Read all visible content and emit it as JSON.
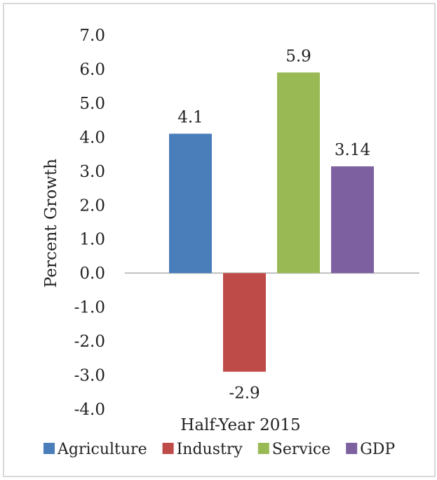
{
  "chart_data": {
    "type": "bar",
    "xlabel": "Half-Year 2015",
    "ylabel": "Percent Growth",
    "ylim": [
      -4.0,
      7.0
    ],
    "yticks": [
      "7.0",
      "6.0",
      "5.0",
      "4.0",
      "3.0",
      "2.0",
      "1.0",
      "0.0",
      "-1.0",
      "-2.0",
      "-3.0",
      "-4.0"
    ],
    "grid": false,
    "legend_position": "bottom",
    "series": [
      {
        "name": "Agriculture",
        "value": 4.1,
        "label": "4.1",
        "color": "#4a7ebb"
      },
      {
        "name": "Industry",
        "value": -2.9,
        "label": "-2.9",
        "color": "#be4b48"
      },
      {
        "name": "Service",
        "value": 5.9,
        "label": "5.9",
        "color": "#98b954"
      },
      {
        "name": "GDP",
        "value": 3.14,
        "label": "3.14",
        "color": "#7d60a0"
      }
    ]
  }
}
